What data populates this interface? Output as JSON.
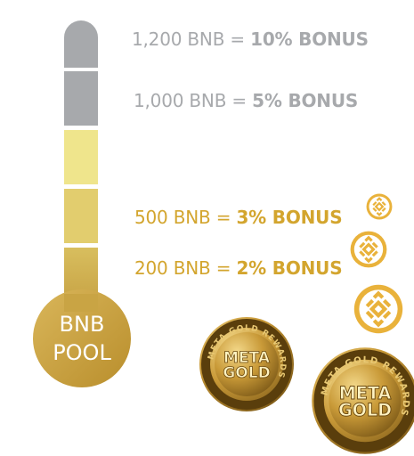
{
  "pool": {
    "line1": "BNB",
    "line2": "POOL"
  },
  "tiers": [
    {
      "amount": "1,200 BNB",
      "eq": "=",
      "bonus": "10% BONUS",
      "color": "#a7a9ac"
    },
    {
      "amount": "1,000 BNB",
      "eq": "=",
      "bonus": "5% BONUS",
      "color": "#a7a9ac"
    },
    {
      "amount": "500 BNB",
      "eq": "=",
      "bonus": "3% BONUS",
      "color": "#d3a52e"
    },
    {
      "amount": "200 BNB",
      "eq": "=",
      "bonus": "2% BONUS",
      "color": "#d3a52e"
    }
  ],
  "medals": {
    "ring_text": "META GOLD REWARDS",
    "center_line1": "META",
    "center_line2": "GOLD"
  },
  "colors": {
    "grey": "#a7a9ac",
    "pale_yellow": "#efe58c",
    "mid_yellow": "#e2cb6a",
    "gold": "#cfaa4a",
    "deep_gold": "#b48b2a"
  },
  "icons": [
    "bnb-coin-icon",
    "bnb-coin-icon",
    "bnb-coin-icon",
    "meta-gold-medal-icon",
    "meta-gold-medal-icon"
  ]
}
